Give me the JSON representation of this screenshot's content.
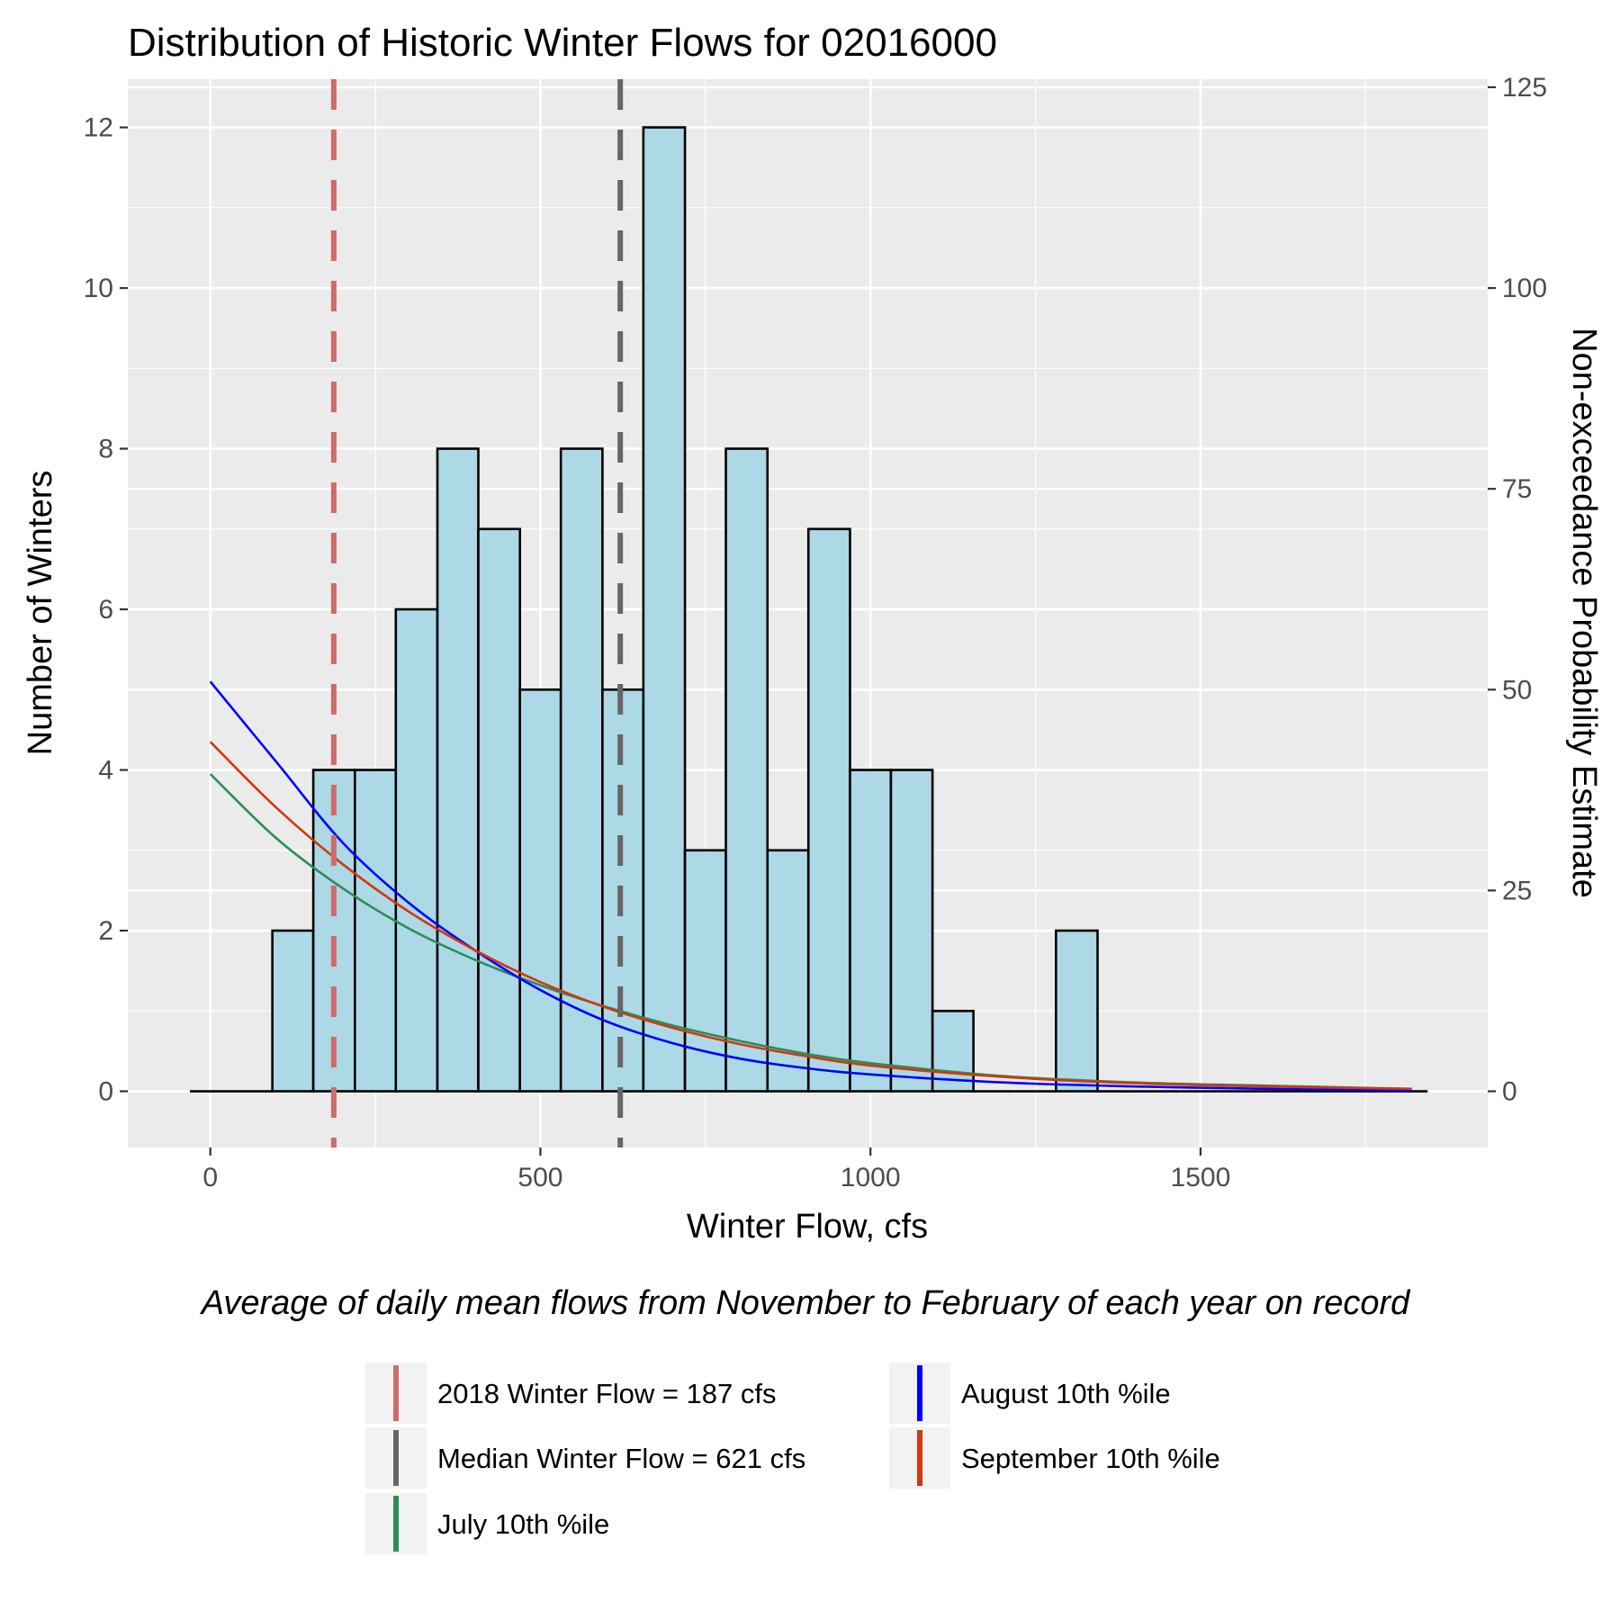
{
  "chart_data": {
    "type": "histogram",
    "title": "Distribution of Historic Winter Flows for 02016000",
    "xlabel": "Winter Flow, cfs",
    "ylabel": "Number of Winters",
    "y2label": "Non-exceedance Probability Estimate",
    "caption": "Average of daily mean flows from November to February of each year on record",
    "xlim": [
      -125,
      1935
    ],
    "ylim": [
      -0.7,
      12.6
    ],
    "y2lim": [
      -7,
      126
    ],
    "x_ticks": [
      0,
      500,
      1000,
      1500
    ],
    "x_tick_labels": [
      "0",
      "500",
      "1000",
      "1500"
    ],
    "y_ticks": [
      0,
      2,
      4,
      6,
      8,
      10,
      12
    ],
    "y_tick_labels": [
      "0",
      "2",
      "4",
      "6",
      "8",
      "10",
      "12"
    ],
    "y2_ticks": [
      0,
      25,
      50,
      75,
      100,
      125
    ],
    "y2_tick_labels": [
      "0",
      "25",
      "50",
      "75",
      "100",
      "125"
    ],
    "grid": true,
    "legend_position": "bottom",
    "bin_width": 62.5,
    "bins": [
      {
        "x0": -31,
        "x1": 31,
        "count": 0
      },
      {
        "x0": 31,
        "x1": 94,
        "count": 0
      },
      {
        "x0": 94,
        "x1": 156,
        "count": 2
      },
      {
        "x0": 156,
        "x1": 219,
        "count": 4
      },
      {
        "x0": 219,
        "x1": 281,
        "count": 4
      },
      {
        "x0": 281,
        "x1": 344,
        "count": 6
      },
      {
        "x0": 344,
        "x1": 406,
        "count": 8
      },
      {
        "x0": 406,
        "x1": 469,
        "count": 7
      },
      {
        "x0": 469,
        "x1": 531,
        "count": 5
      },
      {
        "x0": 531,
        "x1": 594,
        "count": 8
      },
      {
        "x0": 594,
        "x1": 656,
        "count": 5
      },
      {
        "x0": 656,
        "x1": 719,
        "count": 12
      },
      {
        "x0": 719,
        "x1": 781,
        "count": 3
      },
      {
        "x0": 781,
        "x1": 844,
        "count": 8
      },
      {
        "x0": 844,
        "x1": 906,
        "count": 3
      },
      {
        "x0": 906,
        "x1": 969,
        "count": 7
      },
      {
        "x0": 969,
        "x1": 1031,
        "count": 4
      },
      {
        "x0": 1031,
        "x1": 1094,
        "count": 4
      },
      {
        "x0": 1094,
        "x1": 1156,
        "count": 1
      },
      {
        "x0": 1156,
        "x1": 1219,
        "count": 0
      },
      {
        "x0": 1219,
        "x1": 1281,
        "count": 0
      },
      {
        "x0": 1281,
        "x1": 1344,
        "count": 2
      },
      {
        "x0": 1344,
        "x1": 1406,
        "count": 0
      },
      {
        "x0": 1406,
        "x1": 1469,
        "count": 0
      },
      {
        "x0": 1469,
        "x1": 1531,
        "count": 0
      },
      {
        "x0": 1531,
        "x1": 1594,
        "count": 0
      },
      {
        "x0": 1594,
        "x1": 1656,
        "count": 0
      },
      {
        "x0": 1656,
        "x1": 1719,
        "count": 0
      },
      {
        "x0": 1719,
        "x1": 1781,
        "count": 0
      },
      {
        "x0": 1781,
        "x1": 1844,
        "count": 0
      }
    ],
    "vlines": [
      {
        "name": "2018  Winter Flow = 187 cfs",
        "x": 187,
        "color": "#cd6b6b"
      },
      {
        "name": "Median Winter Flow = 621 cfs",
        "x": 621,
        "color": "#666666"
      }
    ],
    "series": [
      {
        "name": "July 10th %ile",
        "color": "#2e8b57",
        "axis": "y2",
        "x": [
          0,
          100,
          200,
          300,
          400,
          500,
          600,
          700,
          800,
          900,
          1000,
          1200,
          1400,
          1600,
          1820
        ],
        "y": [
          39.5,
          31.5,
          25.3,
          20.3,
          16.4,
          13.2,
          10.5,
          8.2,
          6.3,
          4.7,
          3.5,
          1.9,
          1.1,
          0.7,
          0.3
        ]
      },
      {
        "name": "August 10th %ile",
        "color": "#0000ff",
        "axis": "y2",
        "x": [
          0,
          100,
          200,
          300,
          400,
          500,
          600,
          700,
          800,
          900,
          1000,
          1200,
          1400,
          1600,
          1820
        ],
        "y": [
          51,
          41,
          31,
          23.5,
          17.6,
          12.6,
          8.7,
          6,
          4.1,
          2.9,
          2.1,
          1.1,
          0.6,
          0.3,
          0.1
        ]
      },
      {
        "name": "September 10th %ile",
        "color": "#d03810",
        "axis": "y2",
        "x": [
          0,
          100,
          200,
          300,
          400,
          500,
          600,
          700,
          800,
          900,
          1000,
          1200,
          1400,
          1600,
          1820
        ],
        "y": [
          43.5,
          35.3,
          28.3,
          22.4,
          17.6,
          13.6,
          10.4,
          7.9,
          5.9,
          4.4,
          3.2,
          1.8,
          1.0,
          0.6,
          0.3
        ]
      }
    ],
    "legend": [
      {
        "label": "2018  Winter Flow = 187 cfs",
        "color": "#cd6b6b"
      },
      {
        "label": "Median Winter Flow = 621 cfs",
        "color": "#666666"
      },
      {
        "label": "July 10th %ile",
        "color": "#2e8b57"
      },
      {
        "label": "August 10th %ile",
        "color": "#0000ff"
      },
      {
        "label": "September 10th %ile",
        "color": "#d03810"
      }
    ],
    "colors": {
      "panel": "#ebebeb",
      "grid": "#ffffff",
      "bar_fill": "#add8e6",
      "bar_stroke": "#000000"
    }
  }
}
